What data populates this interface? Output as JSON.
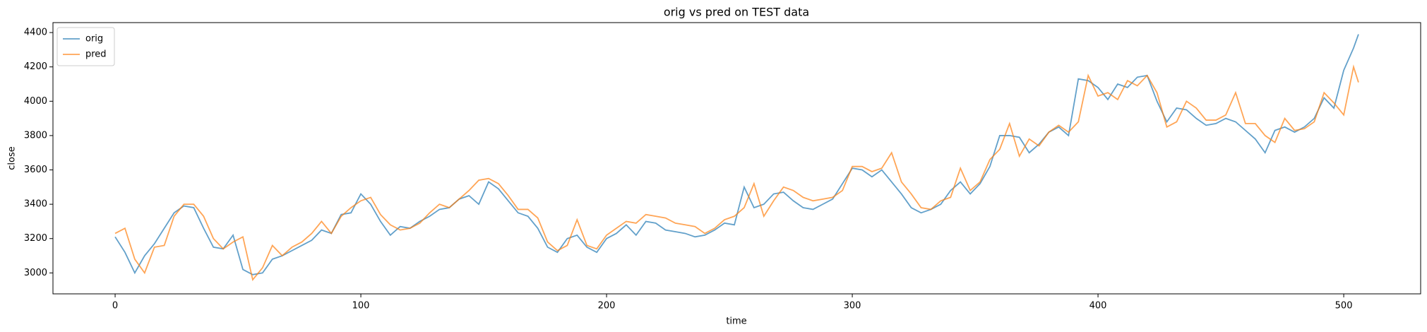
{
  "chart_data": {
    "type": "line",
    "title": "orig vs pred on TEST data",
    "x_label": "time",
    "y_label": "close",
    "x": [
      0,
      4,
      8,
      12,
      16,
      20,
      24,
      28,
      32,
      36,
      40,
      44,
      48,
      52,
      56,
      60,
      64,
      68,
      72,
      76,
      80,
      84,
      88,
      92,
      96,
      100,
      104,
      108,
      112,
      116,
      120,
      124,
      128,
      132,
      136,
      140,
      144,
      148,
      152,
      156,
      160,
      164,
      168,
      172,
      176,
      180,
      184,
      188,
      192,
      196,
      200,
      204,
      208,
      212,
      216,
      220,
      224,
      228,
      232,
      236,
      240,
      244,
      248,
      252,
      256,
      260,
      264,
      268,
      272,
      276,
      280,
      284,
      288,
      292,
      296,
      300,
      304,
      308,
      312,
      316,
      320,
      324,
      328,
      332,
      336,
      340,
      344,
      348,
      352,
      356,
      360,
      364,
      368,
      372,
      376,
      380,
      384,
      388,
      392,
      396,
      400,
      404,
      408,
      412,
      416,
      420,
      424,
      428,
      432,
      436,
      440,
      444,
      448,
      452,
      456,
      460,
      464,
      468,
      472,
      476,
      480,
      484,
      488,
      492,
      496,
      500,
      504,
      506
    ],
    "series": [
      {
        "name": "orig",
        "color": "#1f77b4",
        "values": [
          3210,
          3120,
          3000,
          3100,
          3170,
          3260,
          3350,
          3390,
          3380,
          3260,
          3150,
          3140,
          3220,
          3020,
          2990,
          3000,
          3080,
          3100,
          3130,
          3160,
          3190,
          3250,
          3230,
          3340,
          3350,
          3460,
          3400,
          3300,
          3220,
          3270,
          3260,
          3300,
          3330,
          3370,
          3380,
          3430,
          3450,
          3400,
          3530,
          3490,
          3420,
          3350,
          3330,
          3260,
          3150,
          3120,
          3200,
          3220,
          3150,
          3120,
          3200,
          3230,
          3280,
          3220,
          3300,
          3290,
          3250,
          3240,
          3230,
          3210,
          3220,
          3250,
          3290,
          3280,
          3500,
          3380,
          3400,
          3460,
          3470,
          3420,
          3380,
          3370,
          3400,
          3430,
          3520,
          3610,
          3600,
          3560,
          3600,
          3530,
          3460,
          3380,
          3350,
          3370,
          3400,
          3480,
          3530,
          3460,
          3520,
          3620,
          3800,
          3800,
          3790,
          3700,
          3750,
          3820,
          3850,
          3800,
          4130,
          4120,
          4080,
          4010,
          4100,
          4080,
          4140,
          4150,
          4000,
          3880,
          3960,
          3950,
          3900,
          3860,
          3870,
          3900,
          3880,
          3830,
          3780,
          3700,
          3830,
          3850,
          3820,
          3850,
          3900,
          4020,
          3960,
          4180,
          4310,
          4390
        ]
      },
      {
        "name": "pred",
        "color": "#ff7f0e",
        "values": [
          3230,
          3260,
          3080,
          3000,
          3150,
          3160,
          3330,
          3400,
          3400,
          3330,
          3200,
          3140,
          3180,
          3210,
          2960,
          3030,
          3160,
          3100,
          3150,
          3180,
          3230,
          3300,
          3230,
          3330,
          3380,
          3420,
          3440,
          3340,
          3280,
          3250,
          3260,
          3290,
          3350,
          3400,
          3380,
          3430,
          3480,
          3540,
          3550,
          3520,
          3450,
          3370,
          3370,
          3320,
          3180,
          3130,
          3160,
          3310,
          3160,
          3140,
          3220,
          3260,
          3300,
          3290,
          3340,
          3330,
          3320,
          3290,
          3280,
          3270,
          3230,
          3260,
          3310,
          3330,
          3380,
          3520,
          3330,
          3420,
          3500,
          3480,
          3440,
          3420,
          3430,
          3440,
          3480,
          3620,
          3620,
          3590,
          3610,
          3700,
          3530,
          3460,
          3380,
          3370,
          3420,
          3440,
          3610,
          3480,
          3530,
          3660,
          3720,
          3870,
          3680,
          3780,
          3740,
          3820,
          3860,
          3820,
          3880,
          4150,
          4030,
          4050,
          4010,
          4120,
          4090,
          4150,
          4050,
          3850,
          3880,
          4000,
          3960,
          3890,
          3890,
          3920,
          4050,
          3870,
          3870,
          3800,
          3760,
          3900,
          3830,
          3840,
          3880,
          4050,
          3990,
          3920,
          4200,
          4110
        ]
      }
    ],
    "xlim": [
      -25.3,
      531.3
    ],
    "ylim": [
      2878,
      4458
    ],
    "xticks": [
      0,
      100,
      200,
      300,
      400,
      500
    ],
    "yticks": [
      3000,
      3200,
      3400,
      3600,
      3800,
      4000,
      4200,
      4400
    ],
    "legend": "upper left"
  }
}
